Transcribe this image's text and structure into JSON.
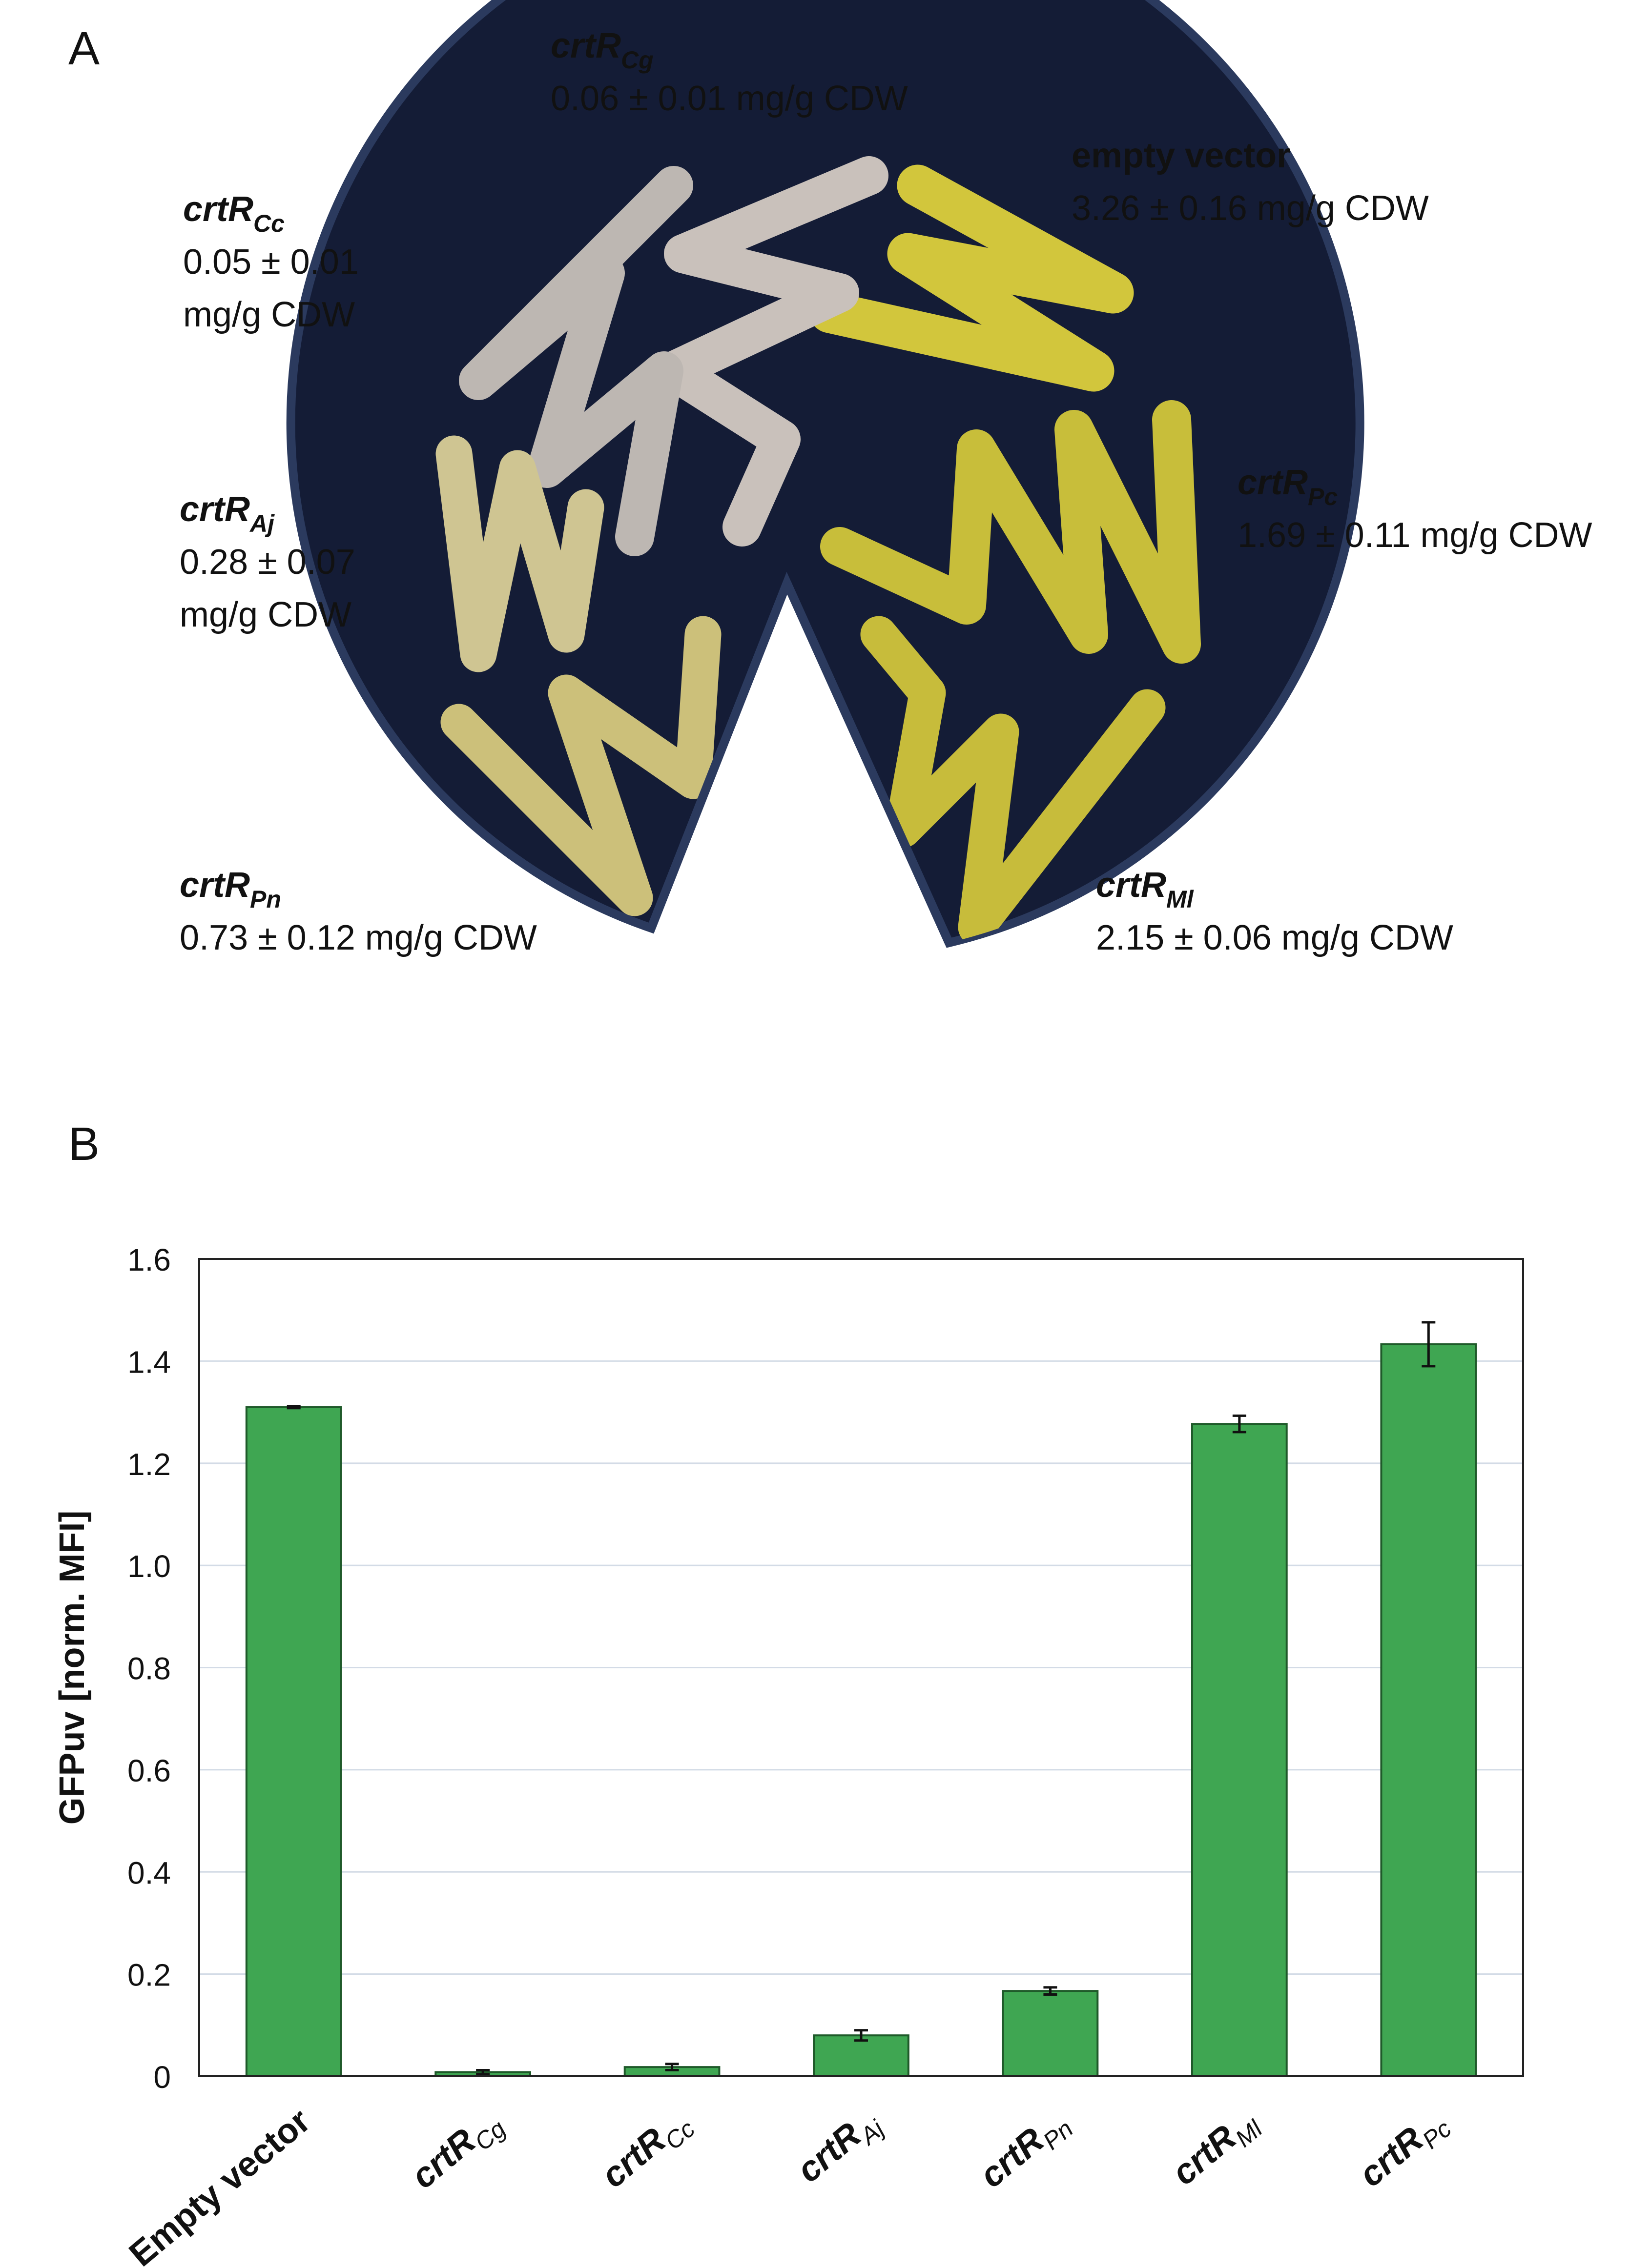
{
  "panels": {
    "a": "A",
    "b": "B"
  },
  "plate": {
    "labels": [
      {
        "key": "cg",
        "gene": "crtR",
        "sub": "Cg",
        "lines": [
          "0.06 ± 0.01 mg/g CDW"
        ]
      },
      {
        "key": "ev",
        "gene": "empty vector",
        "sub": "",
        "lines": [
          "3.26 ± 0.16 mg/g CDW"
        ]
      },
      {
        "key": "cc",
        "gene": "crtR",
        "sub": "Cc",
        "lines": [
          "0.05 ± 0.01",
          "mg/g CDW"
        ]
      },
      {
        "key": "pc",
        "gene": "crtR",
        "sub": "Pc",
        "lines": [
          "1.69 ± 0.11 mg/g CDW"
        ]
      },
      {
        "key": "aj",
        "gene": "crtR",
        "sub": "Aj",
        "lines": [
          "0.28 ± 0.07",
          "mg/g CDW"
        ]
      },
      {
        "key": "pn",
        "gene": "crtR",
        "sub": "Pn",
        "lines": [
          "0.73 ± 0.12 mg/g CDW"
        ]
      },
      {
        "key": "ml",
        "gene": "crtR",
        "sub": "Ml",
        "lines": [
          "2.15 ± 0.06 mg/g CDW"
        ]
      }
    ]
  },
  "colors": {
    "bar": "#3fa652",
    "bar_stroke": "#1f5a2a",
    "grid": "#d3dbe6",
    "plate_bg": "#141c36",
    "plate_rim": "#2b3a5e"
  },
  "chart_data": {
    "type": "bar",
    "title": "",
    "xlabel": "",
    "ylabel": "GFPuv [norm. MFI]",
    "ylim": [
      0,
      1.6
    ],
    "yticks": [
      "0",
      "0.2",
      "0.4",
      "0.6",
      "0.8",
      "1.0",
      "1.2",
      "1.4",
      "1.6"
    ],
    "ytick_values": [
      0,
      0.2,
      0.4,
      0.6,
      0.8,
      1.0,
      1.2,
      1.4,
      1.6
    ],
    "categories": [
      {
        "main": "Empty vector",
        "sub": ""
      },
      {
        "main": "crtR",
        "sub": "Cg"
      },
      {
        "main": "crtR",
        "sub": "Cc"
      },
      {
        "main": "crtR",
        "sub": "Aj"
      },
      {
        "main": "crtR",
        "sub": "Pn"
      },
      {
        "main": "crtR",
        "sub": "Ml"
      },
      {
        "main": "crtR",
        "sub": "Pc"
      }
    ],
    "values": [
      1.31,
      0.008,
      0.018,
      0.08,
      0.167,
      1.277,
      1.433
    ],
    "errors": [
      0.002,
      0.004,
      0.006,
      0.01,
      0.007,
      0.016,
      0.043
    ]
  }
}
